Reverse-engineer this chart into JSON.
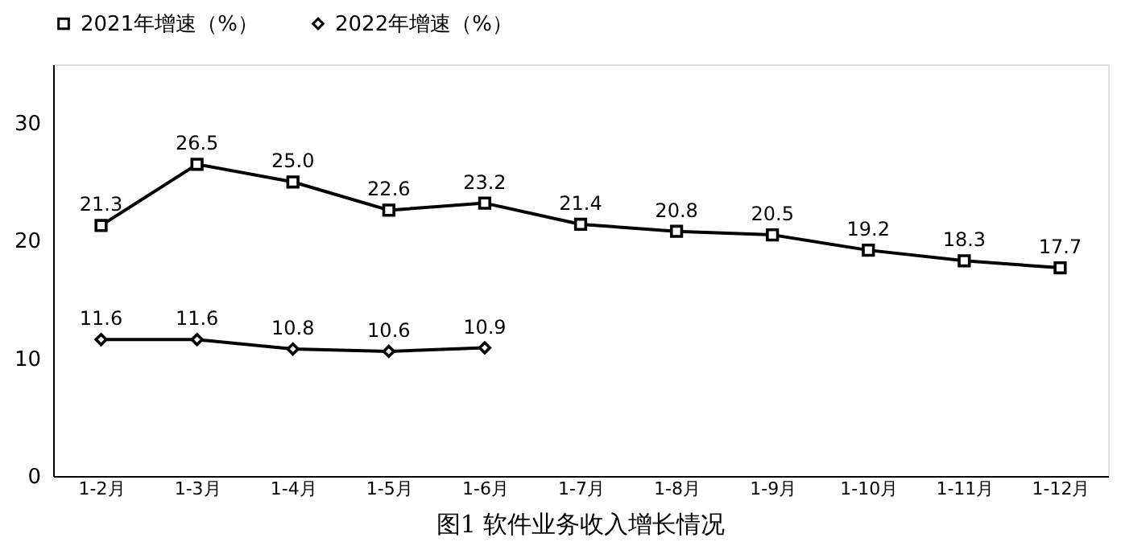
{
  "chart_data": {
    "type": "line",
    "title": "图1  软件业务收入增长情况",
    "categories": [
      "1-2月",
      "1-3月",
      "1-4月",
      "1-5月",
      "1-6月",
      "1-7月",
      "1-8月",
      "1-9月",
      "1-10月",
      "1-11月",
      "1-12月"
    ],
    "series": [
      {
        "name": "2021年增速（%）",
        "color": "#000000",
        "marker": "square",
        "values": [
          21.3,
          26.5,
          25.0,
          22.6,
          23.2,
          21.4,
          20.8,
          20.5,
          19.2,
          18.3,
          17.7
        ],
        "value_labels": [
          "21.3",
          "26.5",
          "25.0",
          "22.6",
          "23.2",
          "21.4",
          "20.8",
          "20.5",
          "19.2",
          "18.3",
          "17.7"
        ]
      },
      {
        "name": "2022年增速（%）",
        "color": "#000000",
        "marker": "diamond",
        "values": [
          11.6,
          11.6,
          10.8,
          10.6,
          10.9,
          null,
          null,
          null,
          null,
          null,
          null
        ],
        "value_labels": [
          "11.6",
          "11.6",
          "10.8",
          "10.6",
          "10.9",
          null,
          null,
          null,
          null,
          null,
          null
        ]
      }
    ],
    "ylim": [
      0,
      35
    ],
    "yticks": [
      0,
      10,
      20,
      30
    ],
    "legend": "top",
    "grid": false,
    "line_style": "solid"
  }
}
